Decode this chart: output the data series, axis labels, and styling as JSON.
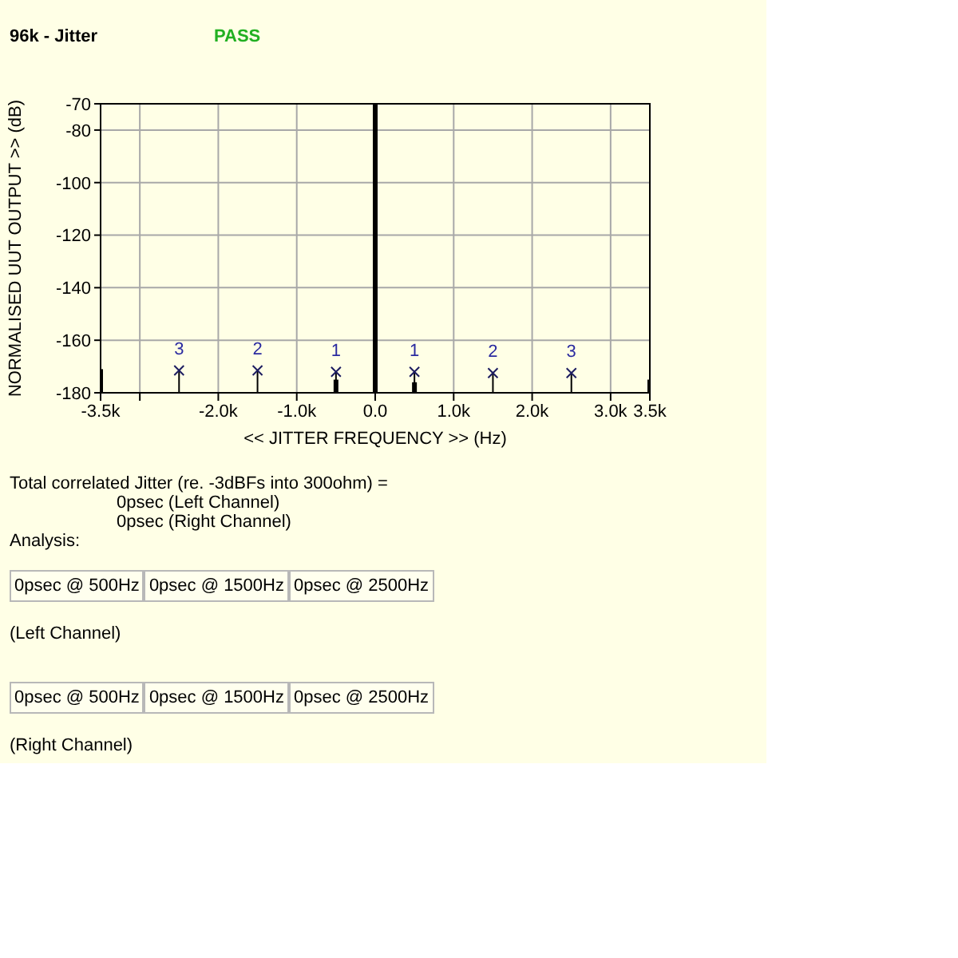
{
  "chart_data": {
    "type": "lollipop",
    "title": "96k - Jitter",
    "subtitle": "PASS",
    "xlabel": "<< JITTER FREQUENCY >> (Hz)",
    "ylabel": "NORMALISED UUT OUTPUT >> (dB)",
    "xlim": [
      -3500,
      3500
    ],
    "xticks": [
      {
        "value": -3500,
        "label": "-3.5k"
      },
      {
        "value": -3000,
        "label": null
      },
      {
        "value": -2000,
        "label": "-2.0k"
      },
      {
        "value": -1000,
        "label": "-1.0k"
      },
      {
        "value": 0,
        "label": "0.0"
      },
      {
        "value": 1000,
        "label": "1.0k"
      },
      {
        "value": 2000,
        "label": "2.0k"
      },
      {
        "value": 3000,
        "label": "3.0k"
      },
      {
        "value": 3500,
        "label": "3.5k"
      }
    ],
    "ylim": [
      -180,
      -70
    ],
    "yticks": [
      -70,
      -80,
      -100,
      -120,
      -140,
      -160,
      -180
    ],
    "grid": true,
    "series": [
      {
        "type": "bar",
        "color": "#000000",
        "x": [
          -3500,
          -500,
          0,
          500,
          3500
        ],
        "base": [
          -180,
          -180,
          -180,
          -180,
          -180
        ],
        "values": [
          9,
          5,
          110,
          4,
          5
        ]
      },
      {
        "color": "#1c1c60",
        "marker": "cross",
        "x": [
          -2500,
          -1500,
          -500,
          500,
          1500,
          2500
        ],
        "values": [
          -171.5,
          -171.5,
          -172,
          -172,
          -172.5,
          -172.5
        ]
      }
    ],
    "annotations": [
      {
        "text": "3",
        "x": -2500,
        "y": -171.5
      },
      {
        "text": "2",
        "x": -1500,
        "y": -171.5
      },
      {
        "text": "1",
        "x": -500,
        "y": -172
      },
      {
        "text": "1",
        "x": 500,
        "y": -172
      },
      {
        "text": "2",
        "x": 1500,
        "y": -172.5
      },
      {
        "text": "3",
        "x": 2500,
        "y": -172.5
      },
      "Total correlated Jitter (re. -3dBFs into 300ohm) =",
      "0psec (Left Channel)",
      "0psec (Right Channel)",
      "Analysis:",
      "0psec @ 500Hz",
      "0psec @ 1500Hz",
      "0psec @ 2500Hz",
      "(Left Channel)",
      "0psec @ 500Hz",
      "0psec @ 1500Hz",
      "0psec @ 2500Hz",
      "(Right Channel)"
    ]
  }
}
